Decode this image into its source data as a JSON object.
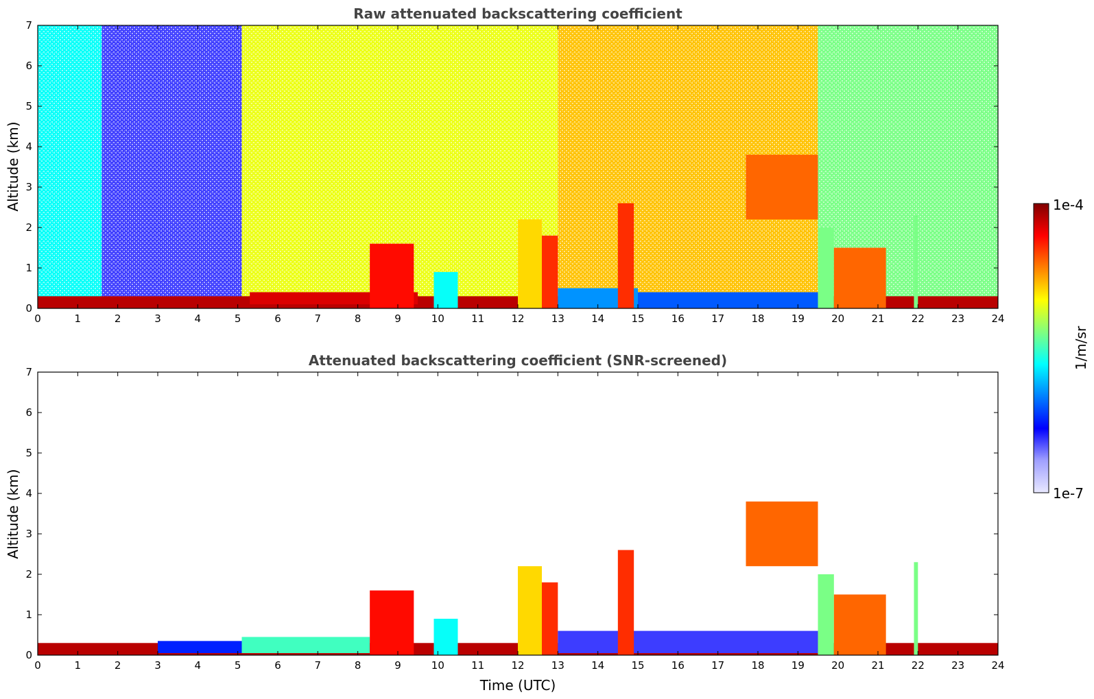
{
  "chart_data": [
    {
      "type": "heatmap",
      "title": "Raw attenuated backscattering coefficient",
      "xlabel": "",
      "ylabel": "Altitude (km)",
      "xlim": [
        0,
        24
      ],
      "ylim": [
        0,
        7
      ],
      "x_ticks": [
        "0",
        "1",
        "2",
        "3",
        "4",
        "5",
        "6",
        "7",
        "8",
        "9",
        "10",
        "11",
        "12",
        "13",
        "14",
        "15",
        "16",
        "17",
        "18",
        "19",
        "20",
        "21",
        "22",
        "23",
        "24"
      ],
      "y_ticks": [
        "0",
        "1",
        "2",
        "3",
        "4",
        "5",
        "6",
        "7"
      ],
      "colorscale": "log",
      "background_noise": [
        {
          "x": [
            0,
            1.6
          ],
          "y": [
            0,
            7
          ],
          "level": 0.45
        },
        {
          "x": [
            1.6,
            5.1
          ],
          "y": [
            0,
            7
          ],
          "level": 0.18
        },
        {
          "x": [
            5.1,
            13
          ],
          "y": [
            0,
            7
          ],
          "level": 0.65
        },
        {
          "x": [
            13,
            19.5
          ],
          "y": [
            0,
            7
          ],
          "level": 0.72
        },
        {
          "x": [
            19.5,
            24
          ],
          "y": [
            0,
            7
          ],
          "level": 0.55
        }
      ],
      "features": [
        {
          "x": [
            0,
            24
          ],
          "y": [
            0,
            0.3
          ],
          "level": 0.95
        },
        {
          "x": [
            5.3,
            9.5
          ],
          "y": [
            0.1,
            0.4
          ],
          "level": 0.92
        },
        {
          "x": [
            8.3,
            9.4
          ],
          "y": [
            0,
            1.6
          ],
          "level": 0.88
        },
        {
          "x": [
            9.9,
            10.5
          ],
          "y": [
            0,
            0.9
          ],
          "level": 0.45
        },
        {
          "x": [
            12,
            12.6
          ],
          "y": [
            0,
            2.2
          ],
          "level": 0.7
        },
        {
          "x": [
            12.6,
            13
          ],
          "y": [
            0,
            1.8
          ],
          "level": 0.85
        },
        {
          "x": [
            13,
            15
          ],
          "y": [
            0,
            0.5
          ],
          "level": 0.35
        },
        {
          "x": [
            14.5,
            14.9
          ],
          "y": [
            0,
            2.6
          ],
          "level": 0.85
        },
        {
          "x": [
            15,
            19.5
          ],
          "y": [
            0,
            0.4
          ],
          "level": 0.3
        },
        {
          "x": [
            17.7,
            19.5
          ],
          "y": [
            2.2,
            3.8
          ],
          "level": 0.8
        },
        {
          "x": [
            19.5,
            19.9
          ],
          "y": [
            0,
            2.0
          ],
          "level": 0.55
        },
        {
          "x": [
            19.9,
            21.2
          ],
          "y": [
            0,
            1.5
          ],
          "level": 0.8
        },
        {
          "x": [
            21.9,
            22
          ],
          "y": [
            0,
            2.3
          ],
          "level": 0.55
        }
      ]
    },
    {
      "type": "heatmap",
      "title": "Attenuated backscattering coefficient (SNR-screened)",
      "xlabel": "Time (UTC)",
      "ylabel": "Altitude (km)",
      "xlim": [
        0,
        24
      ],
      "ylim": [
        0,
        7
      ],
      "x_ticks": [
        "0",
        "1",
        "2",
        "3",
        "4",
        "5",
        "6",
        "7",
        "8",
        "9",
        "10",
        "11",
        "12",
        "13",
        "14",
        "15",
        "16",
        "17",
        "18",
        "19",
        "20",
        "21",
        "22",
        "23",
        "24"
      ],
      "y_ticks": [
        "0",
        "1",
        "2",
        "3",
        "4",
        "5",
        "6",
        "7"
      ],
      "colorscale": "log",
      "features": [
        {
          "x": [
            0,
            24
          ],
          "y": [
            0,
            0.3
          ],
          "level": 0.95
        },
        {
          "x": [
            3.0,
            5.1
          ],
          "y": [
            0.05,
            0.35
          ],
          "level": 0.25
        },
        {
          "x": [
            5.1,
            8.3
          ],
          "y": [
            0.05,
            0.45
          ],
          "level": 0.5
        },
        {
          "x": [
            8.3,
            9.4
          ],
          "y": [
            0,
            1.6
          ],
          "level": 0.88
        },
        {
          "x": [
            9.9,
            10.5
          ],
          "y": [
            0,
            0.9
          ],
          "level": 0.45
        },
        {
          "x": [
            12,
            12.6
          ],
          "y": [
            0,
            2.2
          ],
          "level": 0.7
        },
        {
          "x": [
            12.6,
            13
          ],
          "y": [
            0,
            1.8
          ],
          "level": 0.85
        },
        {
          "x": [
            13,
            19.5
          ],
          "y": [
            0.05,
            0.6
          ],
          "level": 0.18
        },
        {
          "x": [
            14.5,
            14.9
          ],
          "y": [
            0,
            2.6
          ],
          "level": 0.85
        },
        {
          "x": [
            17.7,
            19.5
          ],
          "y": [
            2.2,
            3.8
          ],
          "level": 0.8
        },
        {
          "x": [
            19.5,
            19.9
          ],
          "y": [
            0,
            2.0
          ],
          "level": 0.55
        },
        {
          "x": [
            19.9,
            21.2
          ],
          "y": [
            0,
            1.5
          ],
          "level": 0.8
        },
        {
          "x": [
            21.9,
            22
          ],
          "y": [
            0,
            2.3
          ],
          "level": 0.55
        }
      ]
    }
  ],
  "colorbar": {
    "label": "1/m/sr",
    "max_label": "1e-4",
    "min_label": "1e-7",
    "colors": [
      "#e8e8ff",
      "#a0a0ff",
      "#0000ff",
      "#0080ff",
      "#00ffff",
      "#80ff80",
      "#ffff00",
      "#ff8000",
      "#ff0000",
      "#800000"
    ]
  }
}
